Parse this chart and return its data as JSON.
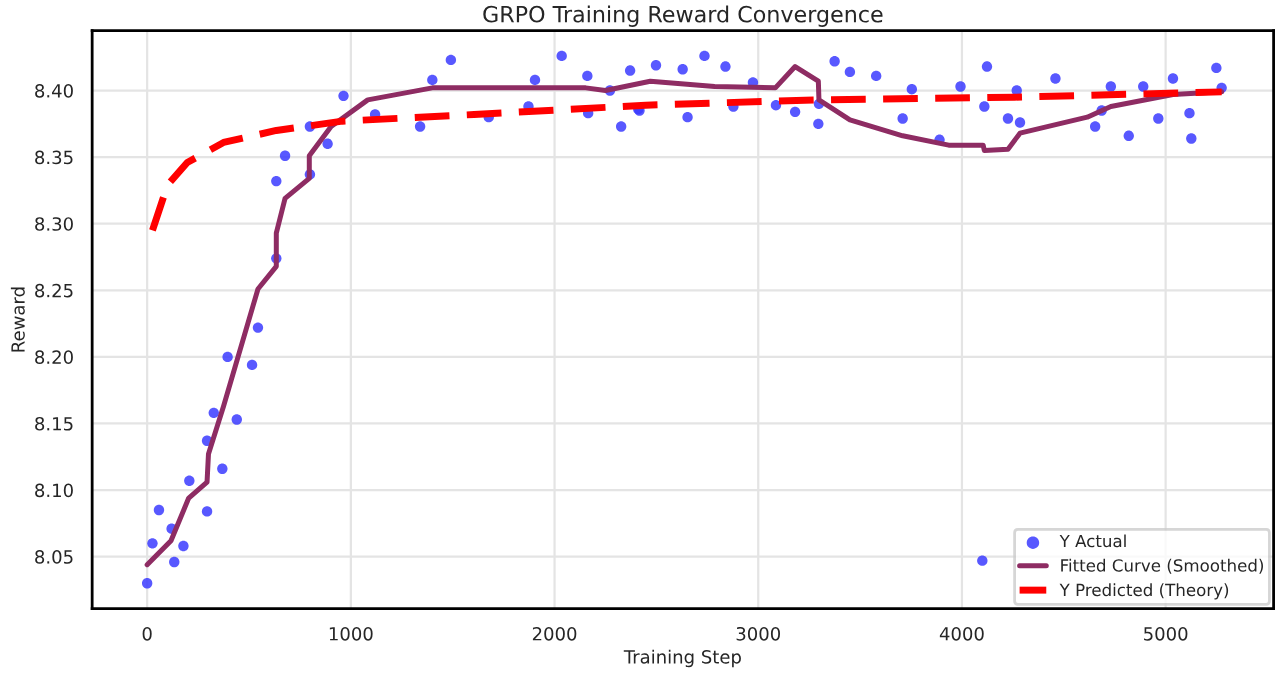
{
  "chart_data": {
    "type": "line",
    "title": "GRPO Training Reward Convergence",
    "xlabel": "Training Step",
    "ylabel": "Reward",
    "xlim": [
      -270,
      5530
    ],
    "ylim": [
      8.011,
      8.445
    ],
    "xticks": [
      0,
      1000,
      2000,
      3000,
      4000,
      5000
    ],
    "yticks": [
      {
        "value": 8.05,
        "label": "8.05"
      },
      {
        "value": 8.1,
        "label": "8.10"
      },
      {
        "value": 8.15,
        "label": "8.15"
      },
      {
        "value": 8.2,
        "label": "8.20"
      },
      {
        "value": 8.25,
        "label": "8.25"
      },
      {
        "value": 8.3,
        "label": "8.30"
      },
      {
        "value": 8.35,
        "label": "8.35"
      },
      {
        "value": 8.4,
        "label": "8.40"
      }
    ],
    "grid": true,
    "legend": "bottom right",
    "series": [
      {
        "name": "Y Actual",
        "type": "scatter",
        "color": "#3b3bff",
        "marker": "circle",
        "x": [
          0,
          26,
          58,
          120,
          133,
          178,
          207,
          294,
          294,
          327,
          369,
          395,
          440,
          515,
          544,
          634,
          634,
          677,
          799,
          799,
          886,
          964,
          1119,
          1340,
          1400,
          1491,
          1677,
          1872,
          1904,
          2035,
          2161,
          2165,
          2272,
          2327,
          2371,
          2411,
          2417,
          2498,
          2629,
          2653,
          2736,
          2839,
          2878,
          2974,
          3087,
          3181,
          3295,
          3298,
          3375,
          3450,
          3579,
          3709,
          3754,
          3890,
          3993,
          4100,
          4110,
          4123,
          4226,
          4269,
          4285,
          4459,
          4654,
          4686,
          4731,
          4819,
          4890,
          4964,
          5036,
          5117,
          5126,
          5249,
          5275
        ],
        "values": [
          8.03,
          8.06,
          8.085,
          8.071,
          8.046,
          8.058,
          8.107,
          8.137,
          8.084,
          8.158,
          8.116,
          8.2,
          8.153,
          8.194,
          8.222,
          8.274,
          8.332,
          8.351,
          8.337,
          8.373,
          8.36,
          8.396,
          8.382,
          8.373,
          8.408,
          8.423,
          8.38,
          8.388,
          8.408,
          8.426,
          8.411,
          8.383,
          8.4,
          8.373,
          8.415,
          8.386,
          8.385,
          8.419,
          8.416,
          8.38,
          8.426,
          8.418,
          8.388,
          8.406,
          8.389,
          8.384,
          8.375,
          8.39,
          8.422,
          8.414,
          8.411,
          8.379,
          8.401,
          8.363,
          8.403,
          8.047,
          8.388,
          8.418,
          8.379,
          8.4,
          8.376,
          8.409,
          8.373,
          8.385,
          8.403,
          8.366,
          8.403,
          8.379,
          8.409,
          8.383,
          8.364,
          8.417,
          8.402
        ]
      },
      {
        "name": "Fitted Curve (Smoothed)",
        "color": "#8e2c63",
        "line_style": "solid",
        "x": [
          0,
          117,
          204,
          294,
          301,
          375,
          544,
          634,
          634,
          677,
          796,
          796,
          903,
          1083,
          1400,
          1750,
          2153,
          2250,
          2470,
          2786,
          3084,
          3181,
          3295,
          3298,
          3450,
          3709,
          3935,
          4104,
          4110,
          4226,
          4285,
          4615,
          4731,
          5036,
          5275
        ],
        "values": [
          8.044,
          8.062,
          8.094,
          8.106,
          8.127,
          8.163,
          8.251,
          8.268,
          8.293,
          8.319,
          8.334,
          8.351,
          8.373,
          8.393,
          8.402,
          8.402,
          8.402,
          8.4,
          8.407,
          8.403,
          8.402,
          8.418,
          8.407,
          8.393,
          8.378,
          8.366,
          8.359,
          8.359,
          8.355,
          8.356,
          8.368,
          8.38,
          8.388,
          8.397,
          8.399
        ]
      },
      {
        "name": "Y Predicted (Theory)",
        "color": "#ff0000",
        "line_style": "dashed",
        "x": [
          26,
          100,
          197,
          375,
          634,
          958,
          1605,
          2447,
          3288,
          4259,
          5275
        ],
        "values": [
          8.295,
          8.329,
          8.346,
          8.361,
          8.37,
          8.377,
          8.382,
          8.389,
          8.393,
          8.395,
          8.399
        ]
      }
    ]
  }
}
